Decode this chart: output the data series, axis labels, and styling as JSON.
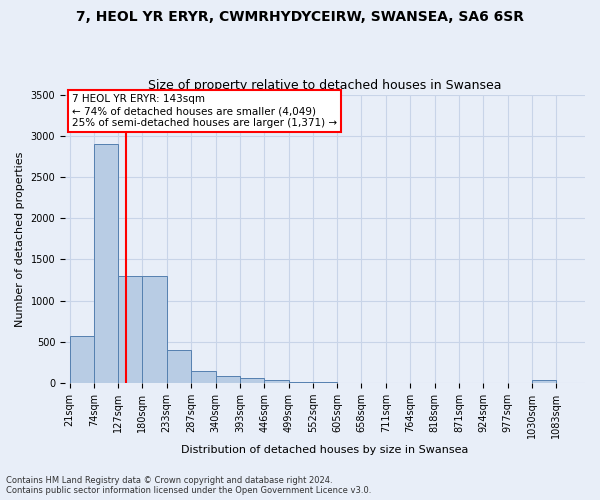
{
  "title": "7, HEOL YR ERYR, CWMRHYDYCEIRW, SWANSEA, SA6 6SR",
  "subtitle": "Size of property relative to detached houses in Swansea",
  "xlabel": "Distribution of detached houses by size in Swansea",
  "ylabel": "Number of detached properties",
  "bin_labels": [
    "21sqm",
    "74sqm",
    "127sqm",
    "180sqm",
    "233sqm",
    "287sqm",
    "340sqm",
    "393sqm",
    "446sqm",
    "499sqm",
    "552sqm",
    "605sqm",
    "658sqm",
    "711sqm",
    "764sqm",
    "818sqm",
    "871sqm",
    "924sqm",
    "977sqm",
    "1030sqm",
    "1083sqm"
  ],
  "bin_left_edges": [
    21,
    74,
    127,
    180,
    233,
    287,
    340,
    393,
    446,
    499,
    552,
    605,
    658,
    711,
    764,
    818,
    871,
    924,
    977,
    1030,
    1083
  ],
  "bar_heights": [
    570,
    2900,
    1300,
    1300,
    400,
    150,
    90,
    60,
    40,
    10,
    8,
    5,
    5,
    3,
    2,
    2,
    1,
    1,
    1,
    40
  ],
  "bar_color": "#b8cce4",
  "bar_edgecolor": "#5580b0",
  "property_size": 143,
  "annotation_text": "7 HEOL YR ERYR: 143sqm\n← 74% of detached houses are smaller (4,049)\n25% of semi-detached houses are larger (1,371) →",
  "vline_color": "red",
  "ylim": [
    0,
    3500
  ],
  "yticks": [
    0,
    500,
    1000,
    1500,
    2000,
    2500,
    3000,
    3500
  ],
  "footnote": "Contains HM Land Registry data © Crown copyright and database right 2024.\nContains public sector information licensed under the Open Government Licence v3.0.",
  "title_fontsize": 10,
  "subtitle_fontsize": 9,
  "label_fontsize": 8,
  "tick_fontsize": 7,
  "annotation_box_color": "white",
  "annotation_box_edgecolor": "red",
  "grid_color": "#c8d4e8",
  "bg_color": "#e8eef8"
}
